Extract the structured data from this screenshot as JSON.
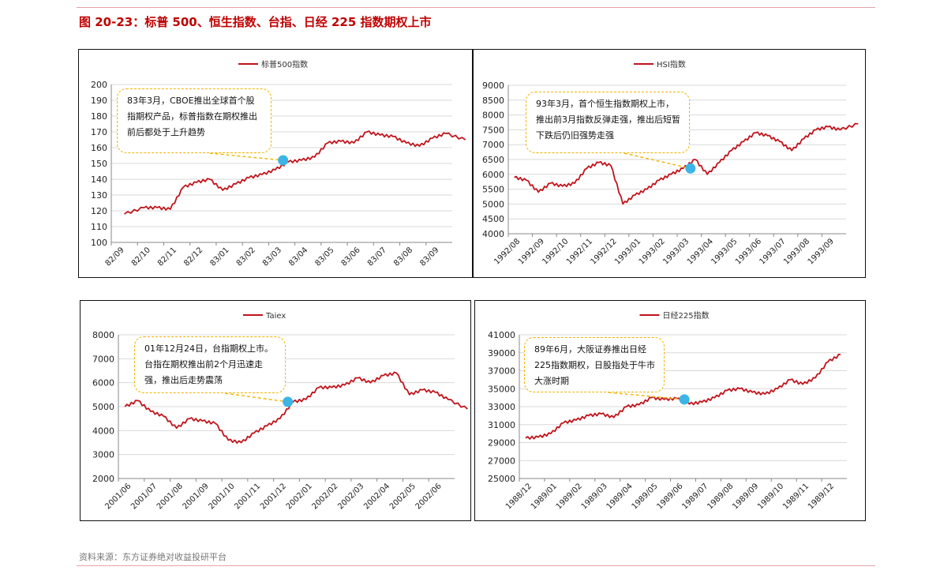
{
  "figure_title": "图 20-23：标普 500、恒生指数、台指、日经 225 指数期权上市",
  "source": "资料来源：东方证券绝对收益投研平台",
  "colors": {
    "line": "#c0141c",
    "marker": "#3cb4e6",
    "callout_border": "#f0b400",
    "grid": "#d9d9d9",
    "title": "#c00000"
  },
  "chart_data": [
    {
      "id": "sp500",
      "type": "line",
      "legend": "标普500指数",
      "legend_position": "top",
      "grid": true,
      "ylim": [
        100,
        200
      ],
      "yticks": [
        "200",
        "190",
        "180",
        "170",
        "160",
        "150",
        "140",
        "130",
        "120",
        "110",
        "100"
      ],
      "xticks": [
        "82/09",
        "82/10",
        "82/11",
        "82/12",
        "83/01",
        "83/02",
        "83/03",
        "83/04",
        "83/05",
        "83/06",
        "83/07",
        "83/08",
        "83/09"
      ],
      "series": [
        {
          "name": "标普500指数",
          "x": [
            "82/09",
            "82/10",
            "82/10",
            "82/11",
            "82/11",
            "82/12",
            "82/12",
            "83/01",
            "83/01",
            "83/02",
            "83/02",
            "83/03",
            "83/03",
            "83/04",
            "83/04",
            "83/05",
            "83/05",
            "83/06",
            "83/06",
            "83/07",
            "83/07",
            "83/08",
            "83/08",
            "83/09",
            "83/09",
            "83/10"
          ],
          "values": [
            118,
            122,
            122,
            121,
            135,
            138,
            140,
            133,
            137,
            141,
            143,
            146,
            151,
            152,
            154,
            163,
            164,
            163,
            170,
            168,
            167,
            163,
            161,
            166,
            169,
            165
          ]
        }
      ],
      "annotation": {
        "text": "83年3月，CBOE推出全球首个股指期权产品，标普指数在期权推出前后都处于上升趋势",
        "x": "83/03",
        "value": 152
      }
    },
    {
      "id": "hsi",
      "type": "line",
      "legend": "HSI指数",
      "legend_position": "top",
      "grid": true,
      "ylim": [
        4000,
        9000
      ],
      "yticks": [
        "9000",
        "8500",
        "8000",
        "7500",
        "7000",
        "6500",
        "6000",
        "5500",
        "5000",
        "4500",
        "4000"
      ],
      "xticks": [
        "1992/08",
        "1992/09",
        "1992/10",
        "1992/11",
        "1992/12",
        "1993/01",
        "1993/02",
        "1993/03",
        "1993/04",
        "1993/05",
        "1993/06",
        "1993/07",
        "1993/08",
        "1993/09"
      ],
      "series": [
        {
          "name": "HSI指数",
          "x": [
            "1992/08",
            "1992/08",
            "1992/09",
            "1992/09",
            "1992/10",
            "1992/10",
            "1992/11",
            "1992/11",
            "1992/12",
            "1992/12",
            "1993/01",
            "1993/01",
            "1993/02",
            "1993/02",
            "1993/03",
            "1993/03",
            "1993/04",
            "1993/04",
            "1993/05",
            "1993/05",
            "1993/06",
            "1993/06",
            "1993/07",
            "1993/07",
            "1993/08",
            "1993/08",
            "1993/09",
            "1993/09",
            "1993/10"
          ],
          "values": [
            5900,
            5800,
            5400,
            5700,
            5600,
            5700,
            6200,
            6400,
            6300,
            5000,
            5300,
            5500,
            5800,
            6000,
            6200,
            6500,
            6000,
            6400,
            6800,
            7100,
            7400,
            7300,
            7100,
            6800,
            7200,
            7500,
            7600,
            7500,
            7700
          ]
        }
      ],
      "annotation": {
        "text": "93年3月，首个恒生指数期权上市，推出前3月指数反弹走强，推出后短暂下跌后仍旧强势走强",
        "x": "1993/03",
        "value": 6200
      }
    },
    {
      "id": "taiex",
      "type": "line",
      "legend": "Taiex",
      "legend_position": "top",
      "grid": true,
      "ylim": [
        2000,
        8000
      ],
      "yticks": [
        "8000",
        "7000",
        "6000",
        "5000",
        "4000",
        "3000",
        "2000"
      ],
      "xticks": [
        "2001/06",
        "2001/07",
        "2001/08",
        "2001/09",
        "2001/10",
        "2001/11",
        "2001/12",
        "2002/01",
        "2002/02",
        "2002/03",
        "2002/04",
        "2002/05",
        "2002/06"
      ],
      "series": [
        {
          "name": "Taiex",
          "x": [
            "2001/06",
            "2001/06",
            "2001/07",
            "2001/07",
            "2001/08",
            "2001/08",
            "2001/09",
            "2001/09",
            "2001/10",
            "2001/10",
            "2001/11",
            "2001/11",
            "2001/12",
            "2001/12",
            "2002/01",
            "2002/01",
            "2002/02",
            "2002/02",
            "2002/03",
            "2002/03",
            "2002/04",
            "2002/04",
            "2002/05",
            "2002/05",
            "2002/06",
            "2002/06",
            "2002/07"
          ],
          "values": [
            5000,
            5250,
            4800,
            4600,
            4100,
            4500,
            4400,
            4300,
            3600,
            3500,
            3900,
            4200,
            4500,
            5200,
            5300,
            5800,
            5800,
            5900,
            6200,
            6000,
            6300,
            6400,
            5500,
            5700,
            5600,
            5300,
            4900
          ]
        }
      ],
      "annotation": {
        "text": "01年12月24日，台指期权上市。台指在期权推出前2个月迅速走强，推出后走势震荡",
        "x": "2001/12",
        "value": 5200
      }
    },
    {
      "id": "nikkei",
      "type": "line",
      "legend": "日经225指数",
      "legend_position": "top",
      "grid": true,
      "ylim": [
        25000,
        41000
      ],
      "yticks": [
        "41000",
        "39000",
        "37000",
        "35000",
        "33000",
        "31000",
        "29000",
        "27000",
        "25000"
      ],
      "xticks": [
        "1988/12",
        "1989/01",
        "1989/02",
        "1989/03",
        "1989/04",
        "1989/05",
        "1989/06",
        "1989/07",
        "1989/08",
        "1989/09",
        "1989/10",
        "1989/11",
        "1989/12"
      ],
      "series": [
        {
          "name": "日经225指数",
          "x": [
            "1988/12",
            "1988/12",
            "1989/01",
            "1989/01",
            "1989/02",
            "1989/02",
            "1989/03",
            "1989/03",
            "1989/04",
            "1989/04",
            "1989/05",
            "1989/05",
            "1989/06",
            "1989/06",
            "1989/07",
            "1989/07",
            "1989/08",
            "1989/08",
            "1989/09",
            "1989/09",
            "1989/10",
            "1989/10",
            "1989/11",
            "1989/11",
            "1989/12",
            "1989/12"
          ],
          "values": [
            29500,
            29600,
            30000,
            31200,
            31500,
            32000,
            32200,
            31800,
            33000,
            33200,
            34000,
            33800,
            33900,
            33300,
            33500,
            34000,
            34800,
            35000,
            34600,
            34400,
            35000,
            36000,
            35500,
            36200,
            38000,
            38800
          ]
        }
      ],
      "annotation": {
        "text": "89年6月，大阪证券推出日经225指数期权，日股指处于牛市大涨时期",
        "x": "1989/06",
        "value": 33800
      }
    }
  ]
}
